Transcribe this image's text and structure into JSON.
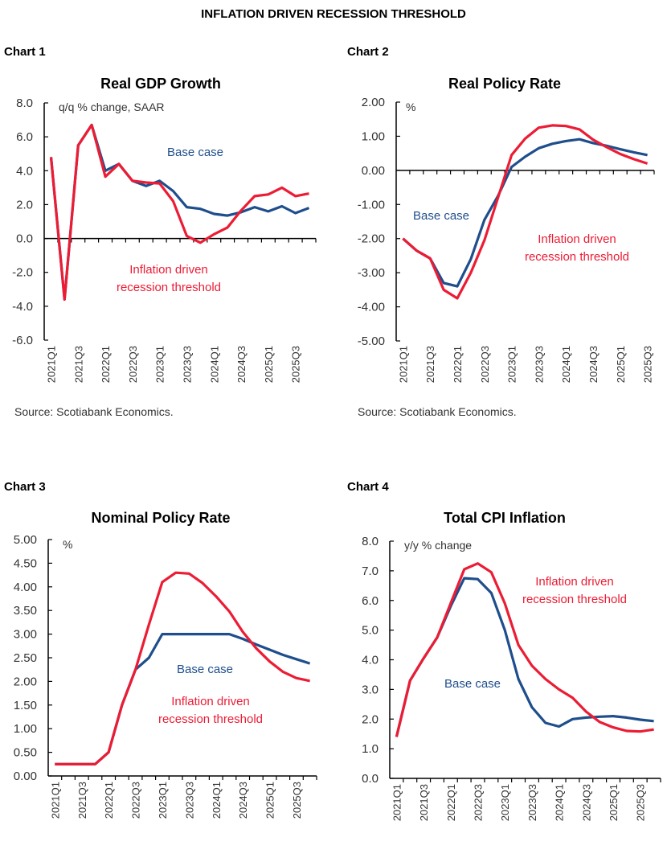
{
  "page_title": "INFLATION DRIVEN RECESSION THRESHOLD",
  "colors": {
    "base": "#1f4e8c",
    "inflation": "#ec1c34",
    "text": "#333333"
  },
  "chart_data": [
    {
      "type": "line",
      "label": "Chart 1",
      "title": "Real GDP Growth",
      "unit": "q/q % change, SAAR",
      "x": [
        "2021Q1",
        "2021Q2",
        "2021Q3",
        "2021Q4",
        "2022Q1",
        "2022Q2",
        "2022Q3",
        "2022Q4",
        "2023Q1",
        "2023Q2",
        "2023Q3",
        "2023Q4",
        "2024Q1",
        "2024Q2",
        "2024Q3",
        "2024Q4",
        "2025Q1",
        "2025Q2",
        "2025Q3",
        "2025Q4"
      ],
      "xticks": [
        "2021Q1",
        "2021Q3",
        "2022Q1",
        "2022Q3",
        "2023Q1",
        "2023Q3",
        "2024Q1",
        "2024Q3",
        "2025Q1",
        "2025Q3"
      ],
      "ylim": [
        -6,
        8
      ],
      "yticks": [
        "8.0",
        "6.0",
        "4.0",
        "2.0",
        "0.0",
        "-2.0",
        "-4.0",
        "-6.0"
      ],
      "series": [
        {
          "name": "Base case",
          "values": [
            4.8,
            -3.6,
            5.5,
            6.7,
            4.0,
            4.4,
            3.4,
            3.1,
            3.4,
            2.8,
            1.85,
            1.75,
            1.45,
            1.35,
            1.55,
            1.85,
            1.6,
            1.9,
            1.5,
            1.8
          ]
        },
        {
          "name": "Inflation driven recession threshold",
          "name_lines": [
            "Inflation driven",
            "recession threshold"
          ],
          "values": [
            4.8,
            -3.6,
            5.5,
            6.7,
            3.65,
            4.4,
            3.4,
            3.3,
            3.25,
            2.2,
            0.15,
            -0.25,
            0.25,
            0.65,
            1.65,
            2.5,
            2.6,
            3.0,
            2.5,
            2.65
          ]
        }
      ],
      "source": "Source: Scotiabank Economics."
    },
    {
      "type": "line",
      "label": "Chart 2",
      "title": "Real Policy Rate",
      "unit": "%",
      "x": [
        "2021Q1",
        "2021Q2",
        "2021Q3",
        "2021Q4",
        "2022Q1",
        "2022Q2",
        "2022Q3",
        "2022Q4",
        "2023Q1",
        "2023Q2",
        "2023Q3",
        "2023Q4",
        "2024Q1",
        "2024Q2",
        "2024Q3",
        "2024Q4",
        "2025Q1",
        "2025Q2",
        "2025Q3"
      ],
      "xticks": [
        "2021Q1",
        "2021Q3",
        "2022Q1",
        "2022Q3",
        "2023Q1",
        "2023Q3",
        "2024Q1",
        "2024Q3",
        "2025Q1",
        "2025Q3"
      ],
      "ylim": [
        -5,
        2
      ],
      "yticks": [
        "2.00",
        "1.00",
        "0.00",
        "-1.00",
        "-2.00",
        "-3.00",
        "-4.00",
        "-5.00"
      ],
      "series": [
        {
          "name": "Base case",
          "values": [
            -2.0,
            -2.35,
            -2.58,
            -3.3,
            -3.4,
            -2.6,
            -1.45,
            -0.75,
            0.1,
            0.4,
            0.65,
            0.78,
            0.86,
            0.91,
            0.8,
            0.72,
            0.62,
            0.53,
            0.45
          ]
        },
        {
          "name": "Inflation driven recession threshold",
          "name_lines": [
            "Inflation driven",
            "recession threshold"
          ],
          "values": [
            -2.0,
            -2.35,
            -2.58,
            -3.5,
            -3.75,
            -3.0,
            -2.05,
            -0.8,
            0.45,
            0.93,
            1.25,
            1.32,
            1.3,
            1.2,
            0.9,
            0.68,
            0.48,
            0.33,
            0.2
          ]
        }
      ],
      "source": "Source: Scotiabank Economics."
    },
    {
      "type": "line",
      "label": "Chart 3",
      "title": "Nominal Policy Rate",
      "unit": "%",
      "x": [
        "2021Q1",
        "2021Q2",
        "2021Q3",
        "2021Q4",
        "2022Q1",
        "2022Q2",
        "2022Q3",
        "2022Q4",
        "2023Q1",
        "2023Q2",
        "2023Q3",
        "2023Q4",
        "2024Q1",
        "2024Q2",
        "2024Q3",
        "2024Q4",
        "2025Q1",
        "2025Q2",
        "2025Q3",
        "2025Q4"
      ],
      "xticks": [
        "2021Q1",
        "2021Q3",
        "2022Q1",
        "2022Q3",
        "2023Q1",
        "2023Q3",
        "2024Q1",
        "2024Q3",
        "2025Q1",
        "2025Q3"
      ],
      "ylim": [
        0,
        5
      ],
      "yticks": [
        "5.00",
        "4.50",
        "4.00",
        "3.50",
        "3.00",
        "2.50",
        "2.00",
        "1.50",
        "1.00",
        "0.50",
        "0.00"
      ],
      "series": [
        {
          "name": "Base case",
          "values": [
            0.25,
            0.25,
            0.25,
            0.25,
            0.5,
            1.5,
            2.25,
            2.5,
            3.0,
            3.0,
            3.0,
            3.0,
            3.0,
            3.0,
            2.9,
            2.78,
            2.67,
            2.56,
            2.47,
            2.38
          ]
        },
        {
          "name": "Inflation driven recession threshold",
          "name_lines": [
            "Inflation driven",
            "recession threshold"
          ],
          "values": [
            0.25,
            0.25,
            0.25,
            0.25,
            0.5,
            1.5,
            2.25,
            3.2,
            4.1,
            4.3,
            4.28,
            4.08,
            3.8,
            3.48,
            3.05,
            2.7,
            2.42,
            2.2,
            2.07,
            2.01
          ]
        }
      ],
      "source": "Source: Scotiabank Economics."
    },
    {
      "type": "line",
      "label": "Chart 4",
      "title": "Total CPI Inflation",
      "unit": "y/y % change",
      "x": [
        "2021Q1",
        "2021Q2",
        "2021Q3",
        "2021Q4",
        "2022Q1",
        "2022Q2",
        "2022Q3",
        "2022Q4",
        "2023Q1",
        "2023Q2",
        "2023Q3",
        "2023Q4",
        "2024Q1",
        "2024Q2",
        "2024Q3",
        "2024Q4",
        "2025Q1",
        "2025Q2",
        "2025Q3",
        "2025Q4"
      ],
      "xticks": [
        "2021Q1",
        "2021Q3",
        "2022Q1",
        "2022Q3",
        "2023Q1",
        "2023Q3",
        "2024Q1",
        "2024Q3",
        "2025Q1",
        "2025Q3"
      ],
      "ylim": [
        0,
        8
      ],
      "yticks": [
        "8.0",
        "7.0",
        "6.0",
        "5.0",
        "4.0",
        "3.0",
        "2.0",
        "1.0",
        "0.0"
      ],
      "series": [
        {
          "name": "Base case",
          "values": [
            1.4,
            3.3,
            4.05,
            4.75,
            5.8,
            6.75,
            6.72,
            6.25,
            5.0,
            3.35,
            2.4,
            1.87,
            1.75,
            2.0,
            2.05,
            2.08,
            2.1,
            2.05,
            1.98,
            1.93
          ]
        },
        {
          "name": "Inflation driven recession threshold",
          "name_lines": [
            "Inflation driven",
            "recession threshold"
          ],
          "values": [
            1.4,
            3.3,
            4.05,
            4.75,
            5.9,
            7.05,
            7.25,
            6.95,
            5.9,
            4.5,
            3.8,
            3.35,
            3.0,
            2.72,
            2.25,
            1.9,
            1.72,
            1.6,
            1.58,
            1.65
          ]
        }
      ],
      "source": "Source: Scotiabank Economics."
    }
  ]
}
